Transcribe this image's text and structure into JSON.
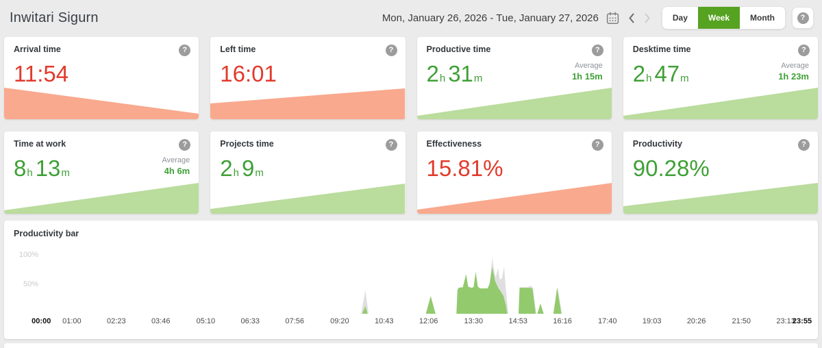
{
  "header": {
    "title": "Inwitari Sigurn",
    "date_range": "Mon, January 26, 2026 - Tue, January 27, 2026",
    "view_buttons": [
      {
        "label": "Day",
        "active": false
      },
      {
        "label": "Week",
        "active": true
      },
      {
        "label": "Month",
        "active": false
      }
    ]
  },
  "icons": {
    "help": "?",
    "prev": "‹",
    "next": "›",
    "calendar": "calendar"
  },
  "colors": {
    "red": "#e23a2c",
    "green": "#3fa037",
    "salmon": "#f9a98e",
    "light_green": "#badc9d",
    "chart_green": "#92ca6d",
    "chart_gray": "#dfdfdf",
    "accent_green": "#56a221"
  },
  "cards": [
    {
      "title": "Arrival time",
      "value": "11:54",
      "color": "red",
      "wedge": {
        "color": "salmon",
        "left_h": 46,
        "right_h": 8
      }
    },
    {
      "title": "Left time",
      "value": "16:01",
      "color": "red",
      "wedge": {
        "color": "salmon",
        "left_h": 23,
        "right_h": 45
      }
    },
    {
      "title": "Productive time",
      "value": [
        {
          "n": "2",
          "u": "h"
        },
        {
          "n": "31",
          "u": "m"
        }
      ],
      "color": "green",
      "average_label": "Average",
      "average_value": "1h 15m",
      "wedge": {
        "color": "light_green",
        "left_h": 5,
        "right_h": 46
      }
    },
    {
      "title": "Desktime time",
      "value": [
        {
          "n": "2",
          "u": "h"
        },
        {
          "n": "47",
          "u": "m"
        }
      ],
      "color": "green",
      "average_label": "Average",
      "average_value": "1h 23m",
      "wedge": {
        "color": "light_green",
        "left_h": 5,
        "right_h": 46
      }
    },
    {
      "title": "Time at work",
      "value": [
        {
          "n": "8",
          "u": "h"
        },
        {
          "n": "13",
          "u": "m"
        }
      ],
      "color": "green",
      "average_label": "Average",
      "average_value": "4h 6m",
      "wedge": {
        "color": "light_green",
        "left_h": 5,
        "right_h": 45
      }
    },
    {
      "title": "Projects time",
      "value": [
        {
          "n": "2",
          "u": "h"
        },
        {
          "n": "9",
          "u": "m"
        }
      ],
      "color": "green",
      "wedge": {
        "color": "light_green",
        "left_h": 7,
        "right_h": 44
      }
    },
    {
      "title": "Effectiveness",
      "value": "15.81%",
      "color": "red",
      "wedge": {
        "color": "salmon",
        "left_h": 6,
        "right_h": 45
      }
    },
    {
      "title": "Productivity",
      "value": "90.28%",
      "color": "green",
      "wedge": {
        "color": "light_green",
        "left_h": 11,
        "right_h": 45
      }
    }
  ],
  "chart_data": {
    "type": "area",
    "title": "Productivity bar",
    "ylim": [
      0,
      100
    ],
    "y_ticks": [
      "100%",
      "50%"
    ],
    "x_range_minutes": [
      0,
      1435
    ],
    "x_ticks": [
      {
        "label": "00:00",
        "minute": 0,
        "bold": true
      },
      {
        "label": "01:00",
        "minute": 60,
        "bold": false
      },
      {
        "label": "02:23",
        "minute": 143,
        "bold": false
      },
      {
        "label": "03:46",
        "minute": 226,
        "bold": false
      },
      {
        "label": "05:10",
        "minute": 310,
        "bold": false
      },
      {
        "label": "06:33",
        "minute": 393,
        "bold": false
      },
      {
        "label": "07:56",
        "minute": 476,
        "bold": false
      },
      {
        "label": "09:20",
        "minute": 560,
        "bold": false
      },
      {
        "label": "10:43",
        "minute": 643,
        "bold": false
      },
      {
        "label": "12:06",
        "minute": 726,
        "bold": false
      },
      {
        "label": "13:30",
        "minute": 810,
        "bold": false
      },
      {
        "label": "14:53",
        "minute": 893,
        "bold": false
      },
      {
        "label": "16:16",
        "minute": 976,
        "bold": false
      },
      {
        "label": "17:40",
        "minute": 1060,
        "bold": false
      },
      {
        "label": "19:03",
        "minute": 1143,
        "bold": false
      },
      {
        "label": "20:26",
        "minute": 1226,
        "bold": false
      },
      {
        "label": "21:50",
        "minute": 1310,
        "bold": false
      },
      {
        "label": "23:13",
        "minute": 1393,
        "bold": false
      },
      {
        "label": "23:55",
        "minute": 1435,
        "bold": true
      }
    ],
    "series": [
      {
        "name": "desktime",
        "color": "chart_gray",
        "points": [
          [
            600,
            0
          ],
          [
            608,
            40
          ],
          [
            614,
            0
          ],
          [
            721,
            0
          ],
          [
            730,
            30
          ],
          [
            739,
            0
          ],
          [
            778,
            0
          ],
          [
            780,
            40
          ],
          [
            782,
            44
          ],
          [
            790,
            45
          ],
          [
            796,
            67
          ],
          [
            800,
            46
          ],
          [
            806,
            44
          ],
          [
            810,
            45
          ],
          [
            814,
            71
          ],
          [
            818,
            46
          ],
          [
            822,
            43
          ],
          [
            836,
            43
          ],
          [
            840,
            52
          ],
          [
            845,
            95
          ],
          [
            848,
            75
          ],
          [
            851,
            62
          ],
          [
            856,
            77
          ],
          [
            859,
            58
          ],
          [
            863,
            60
          ],
          [
            867,
            80
          ],
          [
            870,
            45
          ],
          [
            875,
            0
          ],
          [
            894,
            0
          ],
          [
            896,
            45
          ],
          [
            912,
            45
          ],
          [
            916,
            48
          ],
          [
            921,
            44
          ],
          [
            927,
            0
          ],
          [
            929,
            0
          ],
          [
            935,
            18
          ],
          [
            941,
            0
          ],
          [
            959,
            0
          ],
          [
            967,
            45
          ],
          [
            975,
            0
          ]
        ]
      },
      {
        "name": "productive",
        "color": "chart_green",
        "points": [
          [
            602,
            0
          ],
          [
            608,
            13
          ],
          [
            612,
            0
          ],
          [
            721,
            0
          ],
          [
            730,
            30
          ],
          [
            739,
            0
          ],
          [
            778,
            0
          ],
          [
            780,
            40
          ],
          [
            782,
            44
          ],
          [
            790,
            45
          ],
          [
            796,
            67
          ],
          [
            800,
            46
          ],
          [
            806,
            44
          ],
          [
            810,
            45
          ],
          [
            814,
            71
          ],
          [
            818,
            46
          ],
          [
            822,
            43
          ],
          [
            836,
            43
          ],
          [
            840,
            50
          ],
          [
            845,
            80
          ],
          [
            850,
            56
          ],
          [
            856,
            44
          ],
          [
            862,
            36
          ],
          [
            866,
            30
          ],
          [
            870,
            16
          ],
          [
            873,
            0
          ],
          [
            894,
            0
          ],
          [
            896,
            44
          ],
          [
            914,
            44
          ],
          [
            920,
            43
          ],
          [
            926,
            0
          ],
          [
            929,
            0
          ],
          [
            935,
            17
          ],
          [
            941,
            0
          ],
          [
            959,
            0
          ],
          [
            966,
            44
          ],
          [
            974,
            0
          ]
        ]
      }
    ]
  }
}
